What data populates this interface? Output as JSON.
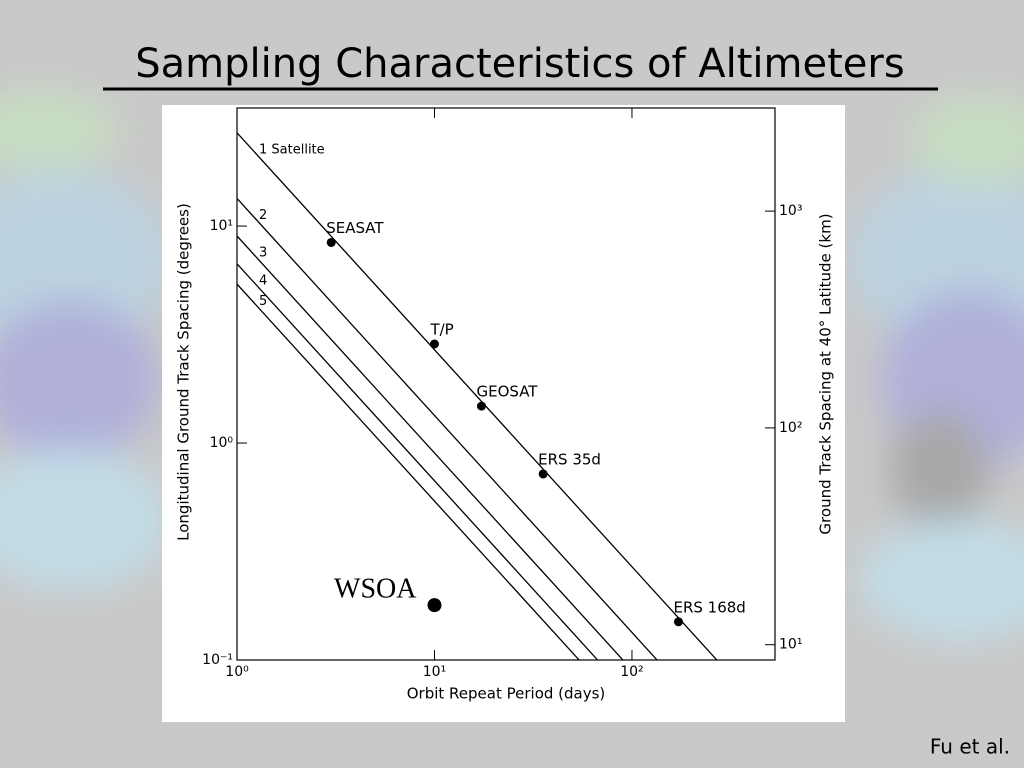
{
  "title": "Sampling Characteristics of Altimeters",
  "credit": "Fu et al.",
  "chart_data": {
    "type": "line",
    "xscale": "log",
    "yscale": "log",
    "y2scale": "log",
    "xlabel": "Orbit Repeat Period (days)",
    "ylabel": "Longitudinal Ground Track Spacing (degrees)",
    "y2label": "Ground Track Spacing at 40° Latitude (km)",
    "xlim": [
      1,
      530
    ],
    "ylim": [
      0.1,
      35
    ],
    "y2lim": [
      8.5,
      2990
    ],
    "xticks": [
      {
        "value": 1,
        "label": "10⁰"
      },
      {
        "value": 10,
        "label": "10¹"
      },
      {
        "value": 100,
        "label": "10²"
      }
    ],
    "yticks": [
      {
        "value": 0.1,
        "label": "10⁻¹"
      },
      {
        "value": 1,
        "label": "10⁰"
      },
      {
        "value": 10,
        "label": "10¹"
      }
    ],
    "y2ticks": [
      {
        "value": 10,
        "label": "10¹"
      },
      {
        "value": 100,
        "label": "10²"
      },
      {
        "value": 1000,
        "label": "10³"
      }
    ],
    "color": "#000000",
    "series": [
      {
        "name": "1 Satellite",
        "x": [
          1,
          269
        ],
        "values": [
          26.9,
          0.1
        ]
      },
      {
        "name": "2",
        "x": [
          1,
          134
        ],
        "values": [
          13.4,
          0.1
        ]
      },
      {
        "name": "3",
        "x": [
          1,
          90
        ],
        "values": [
          9,
          0.1
        ]
      },
      {
        "name": "4",
        "x": [
          1,
          67
        ],
        "values": [
          6.7,
          0.1
        ]
      },
      {
        "name": "5",
        "x": [
          1,
          54
        ],
        "values": [
          5.4,
          0.1
        ]
      }
    ],
    "points": [
      {
        "label": "SEASAT",
        "x": 3,
        "y": 8.4
      },
      {
        "label": "T/P",
        "x": 10,
        "y": 2.86
      },
      {
        "label": "GEOSAT",
        "x": 17.3,
        "y": 1.48
      },
      {
        "label": "ERS 35d",
        "x": 35.5,
        "y": 0.72
      },
      {
        "label": "ERS 168d",
        "x": 172,
        "y": 0.15
      },
      {
        "label": "WSOA",
        "x": 10,
        "y": 0.179
      }
    ]
  }
}
